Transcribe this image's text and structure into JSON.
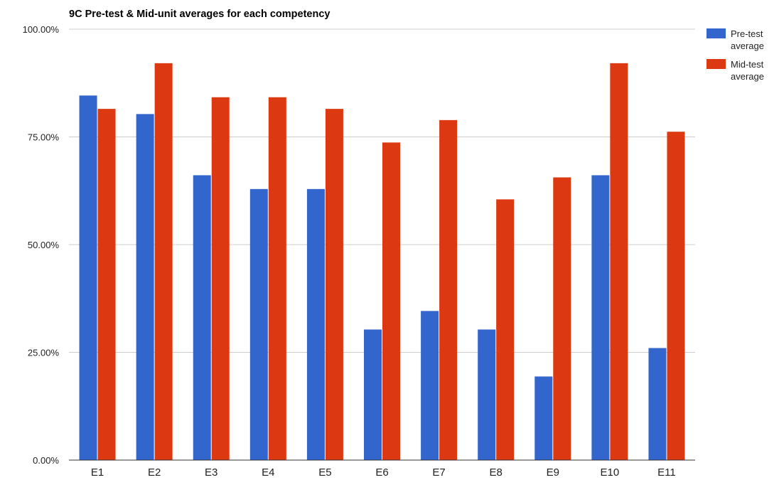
{
  "chart_data": {
    "type": "bar",
    "title": "9C Pre-test & Mid-unit averages for each competency",
    "xlabel": "",
    "ylabel": "",
    "categories": [
      "E1",
      "E2",
      "E3",
      "E4",
      "E5",
      "E6",
      "E7",
      "E8",
      "E9",
      "E10",
      "E11"
    ],
    "series": [
      {
        "name_lines": [
          "Pre-test",
          "average"
        ],
        "color": "#3366cc",
        "values": [
          84.6,
          80.3,
          66.1,
          62.9,
          62.9,
          30.3,
          34.6,
          30.3,
          19.4,
          66.1,
          26.0
        ]
      },
      {
        "name_lines": [
          "Mid-test",
          "average"
        ],
        "color": "#dc3912",
        "values": [
          81.5,
          92.1,
          84.2,
          84.2,
          81.5,
          73.7,
          78.9,
          60.5,
          65.6,
          92.1,
          76.2
        ]
      }
    ],
    "ylim": [
      0,
      100
    ],
    "yticks": [
      "0.00%",
      "25.00%",
      "50.00%",
      "75.00%",
      "100.00%"
    ],
    "ytick_values": [
      0,
      25,
      50,
      75,
      100
    ],
    "grid": true,
    "legend": "right"
  }
}
